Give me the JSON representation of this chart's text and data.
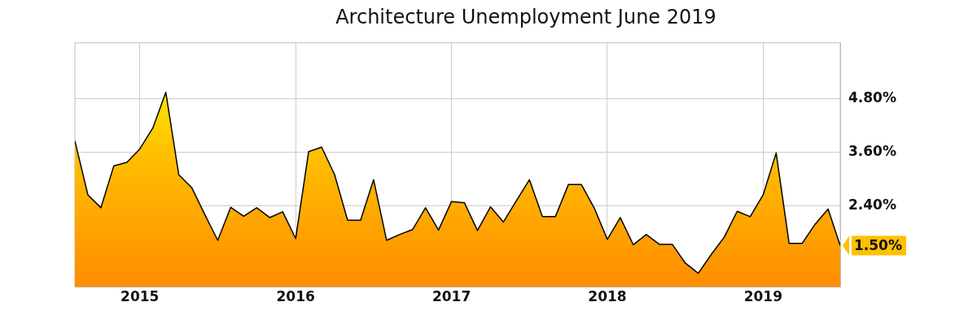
{
  "chart_data": {
    "type": "area",
    "title": "Architecture Unemployment June 2019",
    "x": [
      "2014-08",
      "2014-09",
      "2014-10",
      "2014-11",
      "2014-12",
      "2015-01",
      "2015-02",
      "2015-03",
      "2015-04",
      "2015-05",
      "2015-06",
      "2015-07",
      "2015-08",
      "2015-09",
      "2015-10",
      "2015-11",
      "2015-12",
      "2016-01",
      "2016-02",
      "2016-03",
      "2016-04",
      "2016-05",
      "2016-06",
      "2016-07",
      "2016-08",
      "2016-09",
      "2016-10",
      "2016-11",
      "2016-12",
      "2017-01",
      "2017-02",
      "2017-03",
      "2017-04",
      "2017-05",
      "2017-06",
      "2017-07",
      "2017-08",
      "2017-09",
      "2017-10",
      "2017-11",
      "2017-12",
      "2018-01",
      "2018-02",
      "2018-03",
      "2018-04",
      "2018-05",
      "2018-06",
      "2018-07",
      "2018-08",
      "2018-09",
      "2018-10",
      "2018-11",
      "2018-12",
      "2019-01",
      "2019-02",
      "2019-03",
      "2019-04",
      "2019-05",
      "2019-06",
      "2019-06-29"
    ],
    "series": [
      {
        "color": "#ffc000",
        "values": [
          3.85,
          2.64,
          2.35,
          3.29,
          3.37,
          3.67,
          4.14,
          4.94,
          3.09,
          2.8,
          2.2,
          1.62,
          2.36,
          2.16,
          2.35,
          2.13,
          2.26,
          1.66,
          3.61,
          3.71,
          3.09,
          2.07,
          2.07,
          2.98,
          1.62,
          1.75,
          1.86,
          2.35,
          1.85,
          2.49,
          2.46,
          1.84,
          2.37,
          2.03,
          2.51,
          2.98,
          2.15,
          2.15,
          2.87,
          2.87,
          2.34,
          1.64,
          2.13,
          1.52,
          1.75,
          1.53,
          1.53,
          1.11,
          0.88,
          1.3,
          1.69,
          2.27,
          2.15,
          2.64,
          3.58,
          1.55,
          1.55,
          1.98,
          2.32,
          1.5
        ],
        "value_labels": [
          null,
          null,
          null,
          null,
          null,
          null,
          null,
          null,
          null,
          null,
          null,
          null,
          null,
          null,
          null,
          null,
          null,
          null,
          null,
          null,
          null,
          null,
          null,
          null,
          null,
          null,
          null,
          null,
          null,
          null,
          null,
          null,
          null,
          null,
          null,
          null,
          null,
          null,
          null,
          null,
          null,
          null,
          null,
          null,
          null,
          null,
          null,
          null,
          null,
          null,
          null,
          null,
          null,
          null,
          null,
          null,
          null,
          null,
          null,
          "1.50%"
        ]
      }
    ],
    "xlim": [
      "2014-08",
      "2019-06-29"
    ],
    "xticks": [
      {
        "value": "2015-01",
        "label": "2015"
      },
      {
        "value": "2016-01",
        "label": "2016"
      },
      {
        "value": "2017-01",
        "label": "2017"
      },
      {
        "value": "2018-01",
        "label": "2018"
      },
      {
        "value": "2019-01",
        "label": "2019"
      }
    ],
    "ylim": [
      0.57,
      6.05
    ],
    "yticks": [
      {
        "value": 2.4,
        "label": "2.40%"
      },
      {
        "value": 3.6,
        "label": "3.60%"
      },
      {
        "value": 4.8,
        "label": "4.80%"
      }
    ],
    "grid": true,
    "legend": false,
    "marker": "none",
    "line_style": "solid"
  }
}
